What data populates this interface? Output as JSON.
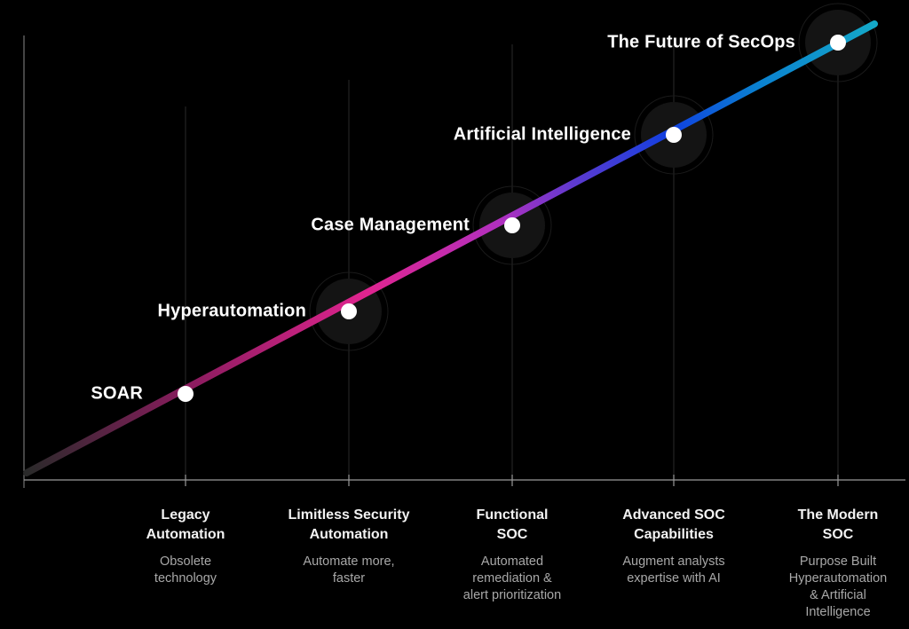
{
  "milestones": [
    {
      "label": "SOAR",
      "halo": false
    },
    {
      "label": "Hyperautomation",
      "halo": true
    },
    {
      "label": "Case Management",
      "halo": true
    },
    {
      "label": "Artificial Intelligence",
      "halo": true
    },
    {
      "label": "The Future of SecOps",
      "halo": true
    }
  ],
  "stages": [
    {
      "title": [
        "Legacy",
        "Automation"
      ],
      "desc": [
        "Obsolete",
        "technology"
      ]
    },
    {
      "title": [
        "Limitless Security",
        "Automation"
      ],
      "desc": [
        "Automate more,",
        "faster"
      ]
    },
    {
      "title": [
        "Functional",
        "SOC"
      ],
      "desc": [
        "Automated",
        "remediation &",
        "alert prioritization"
      ]
    },
    {
      "title": [
        "Advanced SOC",
        "Capabilities"
      ],
      "desc": [
        "Augment analysts",
        "expertise with AI"
      ]
    },
    {
      "title": [
        "The Modern",
        "SOC"
      ],
      "desc": [
        "Purpose Built",
        "Hyperautomation",
        "& Artificial",
        "Intelligence"
      ]
    }
  ],
  "colors": {
    "background": "#000000",
    "gradient": [
      "#2a2a2a",
      "#8a1c5e",
      "#e0248f",
      "#b030c0",
      "#5a3ad0",
      "#1040e0",
      "#0a80d0",
      "#14a8c8"
    ]
  }
}
